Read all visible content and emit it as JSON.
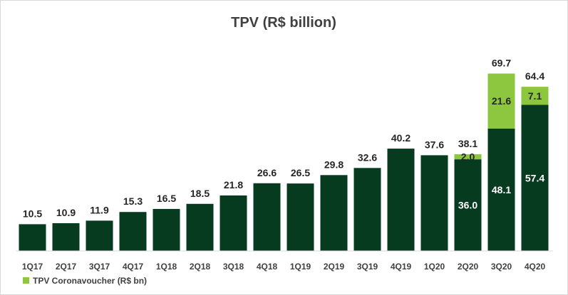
{
  "chart_data": {
    "type": "bar",
    "stacked": true,
    "title": "TPV (R$ billion)",
    "categories": [
      "1Q17",
      "2Q17",
      "3Q17",
      "4Q17",
      "1Q18",
      "2Q18",
      "3Q18",
      "4Q18",
      "1Q19",
      "2Q19",
      "3Q19",
      "4Q19",
      "1Q20",
      "2Q20",
      "3Q20",
      "4Q20"
    ],
    "totals": [
      "10.5",
      "10.9",
      "11.9",
      "15.3",
      "16.5",
      "18.5",
      "21.8",
      "26.6",
      "26.5",
      "29.8",
      "32.6",
      "40.2",
      "37.6",
      "38.1",
      "69.7",
      "64.4"
    ],
    "series": [
      {
        "name": "TPV",
        "color": "#073b1f",
        "values": [
          10.5,
          10.9,
          11.9,
          15.3,
          16.5,
          18.5,
          21.8,
          26.6,
          26.5,
          29.8,
          32.6,
          40.2,
          37.6,
          36.0,
          48.1,
          57.4
        ],
        "labels": [
          "",
          "",
          "",
          "",
          "",
          "",
          "",
          "",
          "",
          "",
          "",
          "",
          "",
          "36.0",
          "48.1",
          "57.4"
        ]
      },
      {
        "name": "TPV Coronavoucher (R$ bn)",
        "color": "#8dc63f",
        "values": [
          0,
          0,
          0,
          0,
          0,
          0,
          0,
          0,
          0,
          0,
          0,
          0,
          0,
          2.0,
          21.6,
          7.1
        ],
        "labels": [
          "",
          "",
          "",
          "",
          "",
          "",
          "",
          "",
          "",
          "",
          "",
          "",
          "",
          "2.0",
          "21.6",
          "7.1"
        ]
      }
    ],
    "ylim": [
      0,
      80
    ],
    "legend": "bottom-left"
  }
}
